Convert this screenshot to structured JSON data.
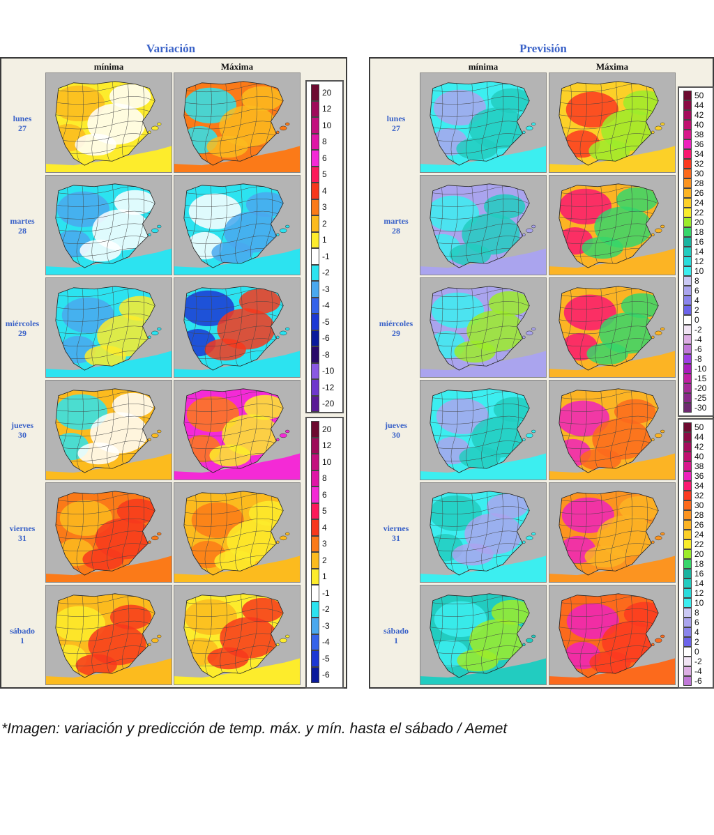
{
  "titles": {
    "variacion": "Variación",
    "prevision": "Previsión"
  },
  "columns": {
    "min": "mínima",
    "max": "Máxima"
  },
  "days": [
    {
      "name": "lunes",
      "num": "27"
    },
    {
      "name": "martes",
      "num": "28"
    },
    {
      "name": "miércoles",
      "num": "29"
    },
    {
      "name": "jueves",
      "num": "30"
    },
    {
      "name": "viernes",
      "num": "31"
    },
    {
      "name": "sábado",
      "num": "1"
    }
  ],
  "variation_legend": {
    "labels": [
      "20",
      "12",
      "10",
      "8",
      "6",
      "5",
      "4",
      "3",
      "2",
      "1",
      "-1",
      "-2",
      "-3",
      "-4",
      "-5",
      "-6",
      "-8",
      "-10",
      "-12",
      "-20"
    ],
    "colors": [
      "#6d0a30",
      "#9e0b5a",
      "#c3107e",
      "#df16a6",
      "#f42ad6",
      "#fc1a5a",
      "#f7381c",
      "#fb7a18",
      "#fcbb1e",
      "#fdec2c",
      "#ffffff",
      "#2ce3f0",
      "#4aa8ee",
      "#3563ea",
      "#1c38d4",
      "#0a1a9c",
      "#2a0a6a",
      "#8a58e2",
      "#6e38cc",
      "#5a1a96"
    ],
    "labels_partial": [
      "20",
      "12",
      "10",
      "8",
      "6",
      "5",
      "4",
      "3",
      "2",
      "1",
      "-1",
      "-2",
      "-3",
      "-4",
      "-5",
      "-6"
    ]
  },
  "forecast_legend": {
    "labels": [
      "50",
      "44",
      "42",
      "40",
      "38",
      "36",
      "34",
      "32",
      "30",
      "28",
      "26",
      "24",
      "22",
      "20",
      "18",
      "16",
      "14",
      "12",
      "10",
      "8",
      "6",
      "4",
      "2",
      "0",
      "-2",
      "-4",
      "-6",
      "-8",
      "-10",
      "-15",
      "-20",
      "-25",
      "-30"
    ],
    "colors": [
      "#6d0a30",
      "#8a0a44",
      "#a40c5c",
      "#c01070",
      "#d8188c",
      "#ee22bc",
      "#fa1870",
      "#fb3a20",
      "#fc6a1c",
      "#fc9420",
      "#fcb424",
      "#fcd028",
      "#f8ec2c",
      "#9cec2a",
      "#36d66a",
      "#1ab4a0",
      "#22ccc0",
      "#2adcdc",
      "#3ceef0",
      "#cac8f4",
      "#aaa4ee",
      "#8a84ec",
      "#6c64ea",
      "#ffffff",
      "#f0e4f4",
      "#dcaee4",
      "#c078d8",
      "#9e3ee4",
      "#a81cbc",
      "#c020a4",
      "#a62a98",
      "#8a2a8a",
      "#6e2a70"
    ],
    "labels_partial": [
      "50",
      "44",
      "42",
      "40",
      "38",
      "36",
      "34",
      "32",
      "30",
      "28",
      "26",
      "24",
      "22",
      "20",
      "18",
      "16",
      "14",
      "12",
      "10",
      "8",
      "6",
      "4",
      "2",
      "0",
      "-2",
      "-4",
      "-6"
    ]
  },
  "caption": "*Imagen: variación y predicción de temp. máx. y mín. hasta el sábado / Aemet"
}
